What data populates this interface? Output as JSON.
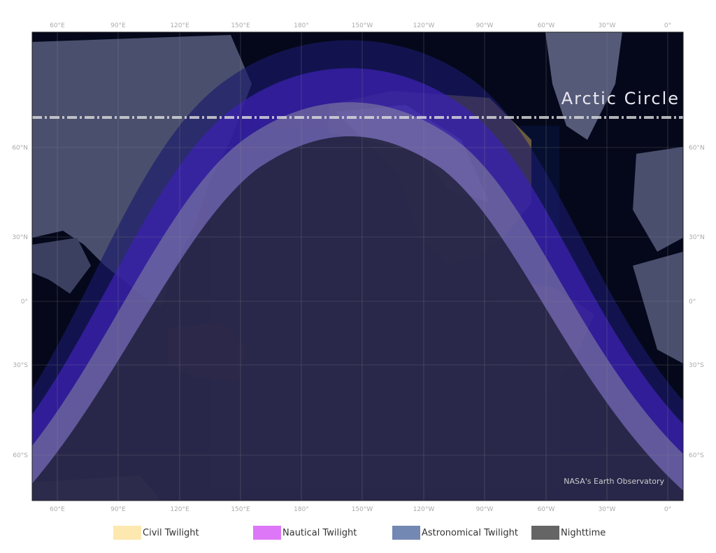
{
  "map": {
    "top_labels": [
      "60°E",
      "90°E",
      "120°E",
      "150°E",
      "180°",
      "150°W",
      "120°W",
      "90°W",
      "60°W",
      "30°W",
      "0°"
    ],
    "bottom_labels": [
      "60°E",
      "90°E",
      "120°E",
      "150°E",
      "180°",
      "150°W",
      "120°W",
      "90°W",
      "60°W",
      "30°W",
      "0°"
    ],
    "left_labels": [
      "60°N",
      "30°N",
      "0°",
      "30°S",
      "60°S"
    ],
    "right_labels": [
      "60°N",
      "30°N",
      "0°",
      "30°S",
      "60°S"
    ],
    "arctic_circle_label": "Arctic Circle",
    "watermark": "NASA's Earth Observatory"
  },
  "legend": [
    {
      "label": "Civil Twilight",
      "color": "#fde8b0"
    },
    {
      "label": "Nautical Twilight",
      "color": "#dd77f7"
    },
    {
      "label": "Astronomical Twilight",
      "color": "#7388b2"
    },
    {
      "label": "Nighttime",
      "color": "#666566"
    }
  ],
  "colors": {
    "ocean": "#05081a",
    "land": "#4a4f6e",
    "band_astro": "#1a1a6a",
    "band_nautical": "#3b22b0",
    "band_night": "#5b5a72"
  }
}
